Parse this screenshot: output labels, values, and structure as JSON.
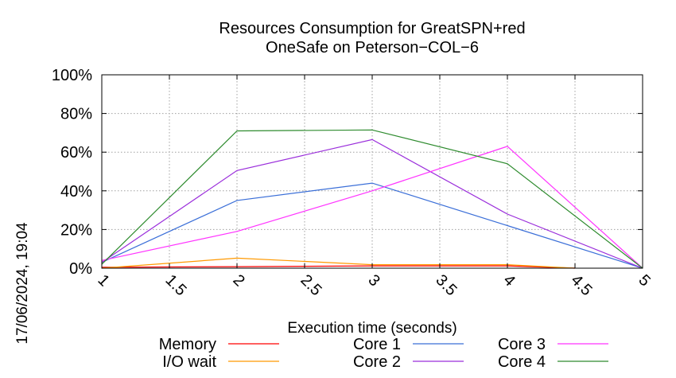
{
  "chart_data": {
    "type": "line",
    "title": "Resources Consumption for GreatSPN+red",
    "subtitle": "OneSafe on Peterson−COL−6",
    "xlabel": "Execution time (seconds)",
    "ylabel": "",
    "side_label": "17/06/2024, 19:04",
    "xlim": [
      1,
      5
    ],
    "ylim": [
      0,
      100
    ],
    "x_ticks": [
      1,
      1.5,
      2,
      2.5,
      3,
      3.5,
      4,
      4.5,
      5
    ],
    "x_tick_labels": [
      "1",
      "1.5",
      "2",
      "2.5",
      "3",
      "3.5",
      "4",
      "4.5",
      "5"
    ],
    "y_ticks": [
      0,
      20,
      40,
      60,
      80,
      100
    ],
    "y_tick_labels": [
      "0%",
      "20%",
      "40%",
      "60%",
      "80%",
      "100%"
    ],
    "grid": true,
    "legend_position": "bottom",
    "series": [
      {
        "name": "Memory",
        "color": "#ff0000",
        "x": [
          1,
          2,
          3,
          4,
          4.5
        ],
        "y": [
          0.5,
          0.8,
          1.2,
          1.2,
          0
        ]
      },
      {
        "name": "I/O wait",
        "color": "#ff9900",
        "x": [
          1,
          2,
          3,
          4,
          4.5
        ],
        "y": [
          0,
          5.2,
          1.8,
          1.8,
          0
        ]
      },
      {
        "name": "Core 1",
        "color": "#3b6fd8",
        "x": [
          1,
          2,
          3,
          4,
          5
        ],
        "y": [
          3,
          35,
          44,
          22,
          0
        ]
      },
      {
        "name": "Core 2",
        "color": "#9a2ddb",
        "x": [
          1,
          2,
          3,
          4,
          5
        ],
        "y": [
          3,
          50.5,
          66.5,
          28,
          0
        ]
      },
      {
        "name": "Core 3",
        "color": "#ff33ff",
        "x": [
          1,
          2,
          3,
          4,
          5
        ],
        "y": [
          4,
          19,
          40,
          63,
          0
        ]
      },
      {
        "name": "Core 4",
        "color": "#2e8b2e",
        "x": [
          1,
          2,
          3,
          4,
          5
        ],
        "y": [
          2,
          71,
          71.5,
          54,
          0
        ]
      }
    ]
  }
}
